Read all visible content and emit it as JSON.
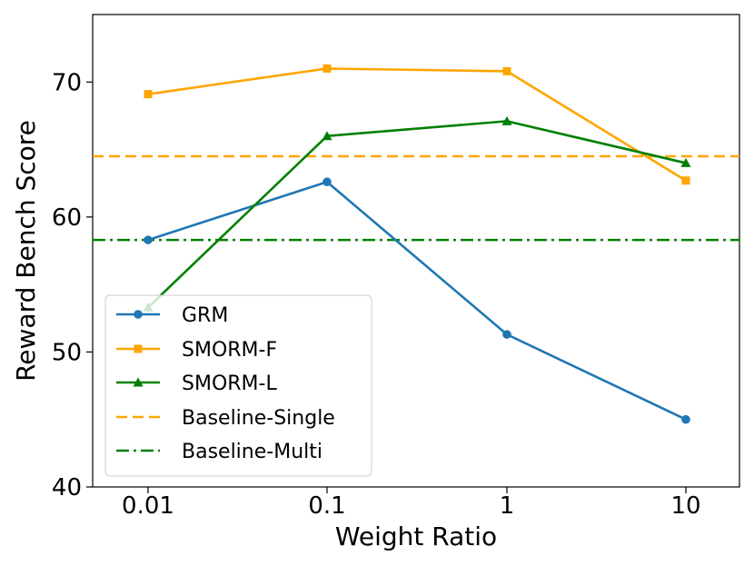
{
  "chart_data": {
    "type": "line",
    "title": "",
    "xlabel": "Weight Ratio",
    "ylabel": "Reward Bench Score",
    "categories": [
      "0.01",
      "0.1",
      "1",
      "10"
    ],
    "x_scale": "log",
    "ylim": [
      40,
      75
    ],
    "yticks": [
      40,
      50,
      60,
      70
    ],
    "ytick_labels": [
      "40",
      "50",
      "60",
      "70"
    ],
    "grid": false,
    "legend_position": "lower-left",
    "series": [
      {
        "name": "GRM",
        "color": "#1f77b4",
        "marker": "circle",
        "linestyle": "solid",
        "values": [
          58.3,
          62.6,
          51.3,
          45.0
        ]
      },
      {
        "name": "SMORM-F",
        "color": "#ffa500",
        "marker": "square",
        "linestyle": "solid",
        "values": [
          69.1,
          71.0,
          70.8,
          62.7
        ]
      },
      {
        "name": "SMORM-L",
        "color": "#008000",
        "marker": "triangle",
        "linestyle": "solid",
        "values": [
          53.3,
          66.0,
          67.1,
          64.0
        ]
      }
    ],
    "reference_lines": [
      {
        "name": "Baseline-Single",
        "color": "#ffa500",
        "linestyle": "dashed",
        "value": 64.5
      },
      {
        "name": "Baseline-Multi",
        "color": "#008000",
        "linestyle": "dashdot",
        "value": 58.3
      }
    ]
  }
}
